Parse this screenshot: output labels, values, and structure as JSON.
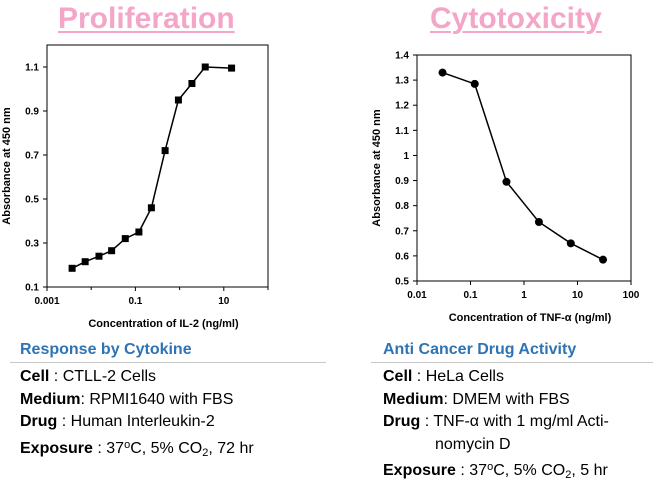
{
  "colors": {
    "heading": "#f4a6c8",
    "section": "#2e74b5",
    "line": "#000000"
  },
  "left": {
    "heading": "Proliferation",
    "section_title": "Response by Cytokine",
    "specs": {
      "cell_label": "Cell",
      "cell_value": "CTLL-2 Cells",
      "medium_label": "Medium",
      "medium_value": "RPMI1640 with FBS",
      "drug_label": "Drug",
      "drug_value": "Human Interleukin-2",
      "exposure_label": "Exposure",
      "exposure_a": "37",
      "exposure_deg": "o",
      "exposure_b": "C, 5% CO",
      "exposure_sub": "2",
      "exposure_c": ", 72 hr"
    }
  },
  "right": {
    "heading": "Cytotoxicity",
    "section_title": "Anti Cancer Drug Activity",
    "specs": {
      "cell_label": "Cell",
      "cell_value": "HeLa Cells",
      "medium_label": "Medium",
      "medium_value": "DMEM with FBS",
      "drug_label": "Drug",
      "drug_value_1": "TNF-α with 1 mg/ml Acti-",
      "drug_value_2": "nomycin D",
      "exposure_label": "Exposure",
      "exposure_a": "37",
      "exposure_deg": "o",
      "exposure_b": "C, 5% CO",
      "exposure_sub": "2",
      "exposure_c": ", 5 hr"
    }
  },
  "chart_data": [
    {
      "type": "line",
      "title": "",
      "xlabel": "Concentration of IL-2 (ng/ml)",
      "ylabel": "Absorbance at 450 nm",
      "xscale": "log",
      "xlim": [
        0.001,
        100
      ],
      "ylim": [
        0.1,
        1.2
      ],
      "xticks": [
        0.001,
        0.1,
        10
      ],
      "xtick_labels": [
        "0.001",
        "0.1",
        "10"
      ],
      "yticks": [
        0.1,
        0.3,
        0.5,
        0.7,
        0.9,
        1.1
      ],
      "ytick_labels": [
        "0.1",
        "0.3",
        "0.5",
        "0.7",
        "0.9",
        "1.1"
      ],
      "marker": "square",
      "grid": false,
      "x": [
        0.0037,
        0.0073,
        0.015,
        0.029,
        0.059,
        0.12,
        0.23,
        0.47,
        0.94,
        1.9,
        3.8,
        15
      ],
      "y": [
        0.185,
        0.215,
        0.24,
        0.265,
        0.32,
        0.35,
        0.46,
        0.72,
        0.95,
        1.025,
        1.1,
        1.095
      ]
    },
    {
      "type": "line",
      "title": "",
      "xlabel": "Concentration of TNF-α (ng/ml)",
      "ylabel": "Absorbance at 450 nm",
      "xscale": "log",
      "xlim": [
        0.01,
        100
      ],
      "ylim": [
        0.5,
        1.4
      ],
      "xticks": [
        0.01,
        0.1,
        1,
        10,
        100
      ],
      "xtick_labels": [
        "0.01",
        "0.1",
        "1",
        "10",
        "100"
      ],
      "yticks": [
        0.5,
        0.6,
        0.7,
        0.8,
        0.9,
        1.0,
        1.1,
        1.2,
        1.3,
        1.4
      ],
      "ytick_labels": [
        "0.5",
        "0.6",
        "0.7",
        "0.8",
        "0.9",
        "1",
        "1.1",
        "1.2",
        "1.3",
        "1.4"
      ],
      "marker": "circle",
      "grid": false,
      "x": [
        0.03,
        0.12,
        0.47,
        1.9,
        7.5,
        30
      ],
      "y": [
        1.33,
        1.285,
        0.895,
        0.735,
        0.65,
        0.585
      ]
    }
  ]
}
